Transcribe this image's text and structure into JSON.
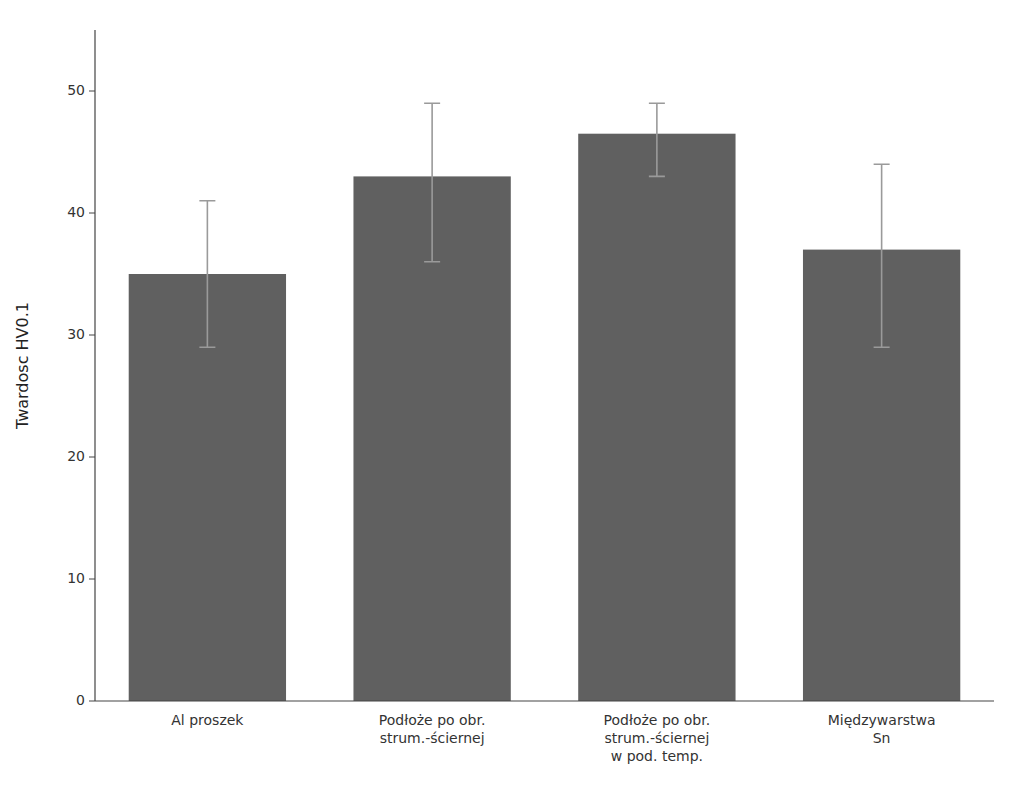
{
  "chart_data": {
    "type": "bar",
    "categories": [
      "Al proszek",
      "Podłoże po obr.\nstrum.-ściernej",
      "Podłoże po obr.\nstrum.-ściernej\nw pod. temp.",
      "Międzywarstwa\nSn"
    ],
    "values": [
      35.0,
      43.0,
      46.5,
      37.0
    ],
    "errors_lower": [
      6.0,
      7.0,
      3.5,
      8.0
    ],
    "errors_upper": [
      6.0,
      6.0,
      2.5,
      7.0
    ],
    "color": "#606060",
    "ylabel": "Twardosc HV0.1",
    "ylim": [
      0,
      55
    ],
    "yticks": [
      0,
      10,
      20,
      30,
      40,
      50
    ],
    "grid": false
  }
}
